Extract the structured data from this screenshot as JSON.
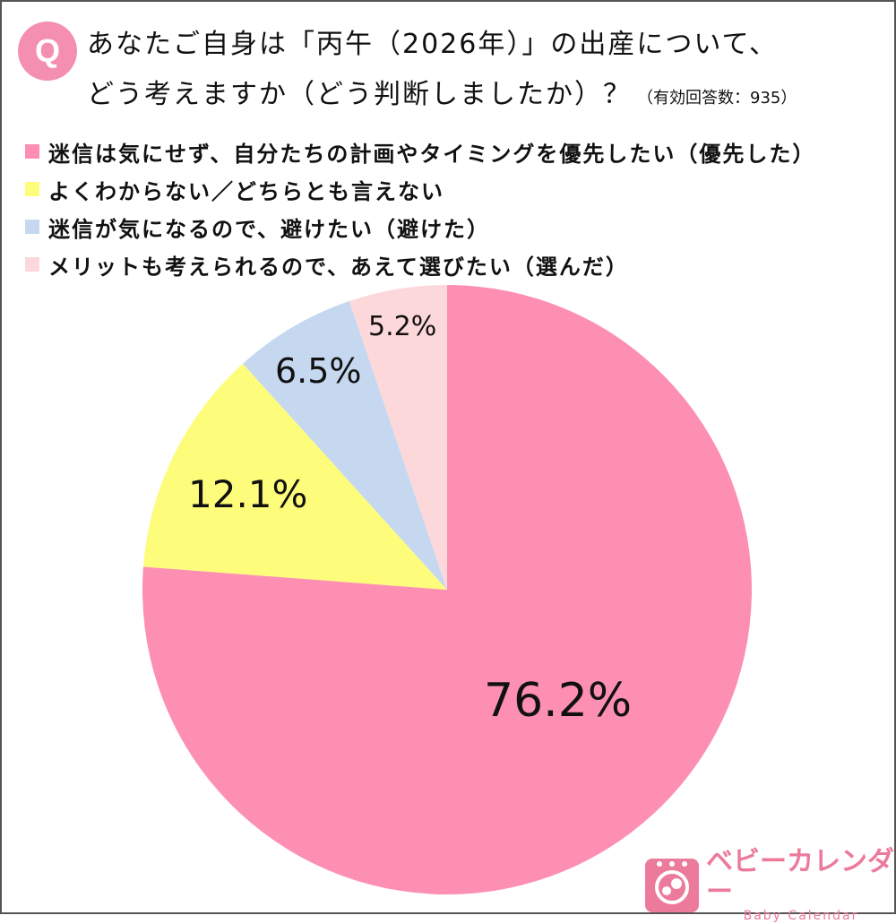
{
  "header": {
    "badge": "Q",
    "title_line1": "あなたご自身は「丙午（2026年）」の出産について、",
    "title_line2": "どう考えますか（どう判断しましたか）？",
    "note": "（有効回答数：935）"
  },
  "legend": [
    {
      "label": "迷信は気にせず、自分たちの計画やタイミングを優先したい（優先した）",
      "color": "#fd8fb3"
    },
    {
      "label": "よくわからない／どちらとも言えない",
      "color": "#fdfd7b"
    },
    {
      "label": "迷信が気になるので、避けたい（避けた）",
      "color": "#c6d8f0"
    },
    {
      "label": "メリットも考えられるので、あえて選びたい（選んだ）",
      "color": "#fdd8db"
    }
  ],
  "slices": [
    {
      "label": "76.2%"
    },
    {
      "label": "12.1%"
    },
    {
      "label": "6.5%"
    },
    {
      "label": "5.2%"
    }
  ],
  "logo": {
    "jp": "ベビーカレンダー",
    "en": "Baby Calendar"
  },
  "chart_data": {
    "type": "pie",
    "title": "あなたご自身は「丙午（2026年）」の出産について、どう考えますか（どう判断しましたか）？",
    "subtitle": "（有効回答数：935）",
    "categories": [
      "迷信は気にせず、自分たちの計画やタイミングを優先したい（優先した）",
      "よくわからない／どちらとも言えない",
      "迷信が気になるので、避けたい（避けた）",
      "メリットも考えられるので、あえて選びたい（選んだ）"
    ],
    "values": [
      76.2,
      12.1,
      6.5,
      5.2
    ],
    "colors": [
      "#fd8fb3",
      "#fdfd7b",
      "#c6d8f0",
      "#fdd8db"
    ],
    "start_angle": "12 o'clock, clockwise",
    "legend_position": "top-left",
    "unit": "%"
  }
}
